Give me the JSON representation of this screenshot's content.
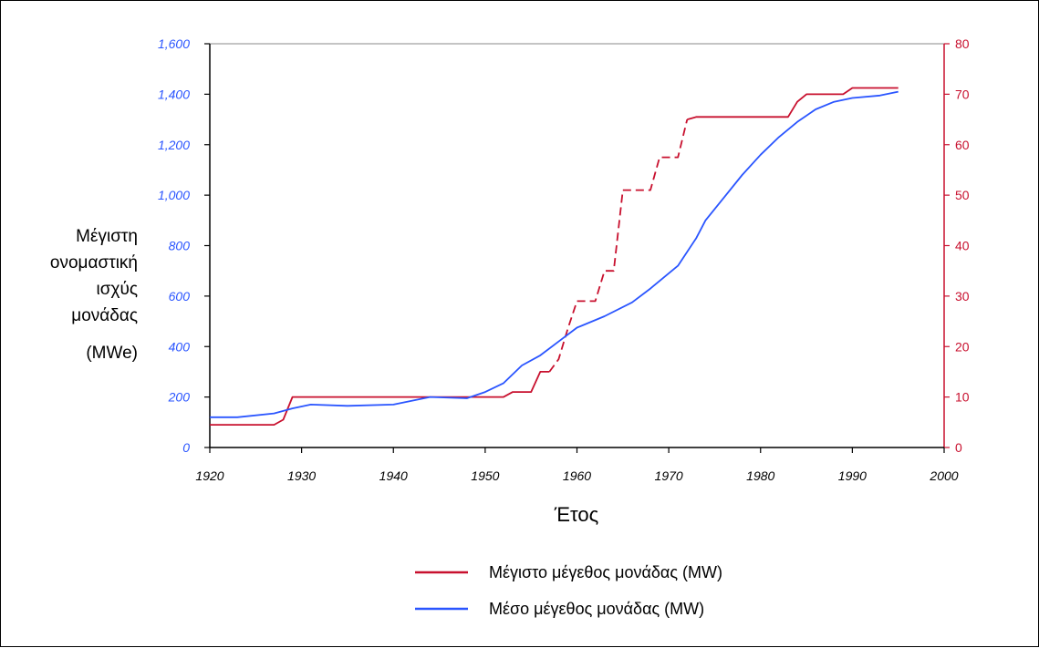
{
  "chart_data": {
    "type": "line",
    "title": "",
    "xlabel": "Έτος",
    "ylabel_lines": [
      "Μέγιστη",
      "ονομαστική",
      "ισχύς",
      "μονάδας",
      "(MWe)"
    ],
    "xlim": [
      1920,
      2000
    ],
    "ylim_left": [
      0,
      1600
    ],
    "ylim_right": [
      0,
      80
    ],
    "x_ticks": [
      "1920",
      "1930",
      "1940",
      "1950",
      "1960",
      "1970",
      "1980",
      "1990",
      "2000"
    ],
    "y_ticks_left": [
      "0",
      "200",
      "400",
      "600",
      "800",
      "1,000",
      "1,200",
      "1,400",
      "1,600"
    ],
    "y_ticks_right": [
      "0",
      "10",
      "20",
      "30",
      "40",
      "50",
      "60",
      "70",
      "80"
    ],
    "grid": false,
    "legend_position": "bottom",
    "colors": {
      "max": "#c8102e",
      "avg": "#2a55ff"
    },
    "series": [
      {
        "name": "Μέγιστο μέγεθος μονάδας (MW)",
        "color": "#c8102e",
        "axis": "left",
        "dash_segment_x": [
          1957,
          1972
        ],
        "points": [
          [
            1920,
            90
          ],
          [
            1927,
            90
          ],
          [
            1928,
            110
          ],
          [
            1929,
            200
          ],
          [
            1952,
            200
          ],
          [
            1953,
            220
          ],
          [
            1955,
            220
          ],
          [
            1956,
            300
          ],
          [
            1957,
            300
          ],
          [
            1958,
            350
          ],
          [
            1959,
            470
          ],
          [
            1960,
            580
          ],
          [
            1962,
            580
          ],
          [
            1963,
            700
          ],
          [
            1964,
            700
          ],
          [
            1965,
            1020
          ],
          [
            1968,
            1020
          ],
          [
            1969,
            1150
          ],
          [
            1971,
            1150
          ],
          [
            1972,
            1300
          ],
          [
            1973,
            1310
          ],
          [
            1983,
            1310
          ],
          [
            1984,
            1370
          ],
          [
            1985,
            1400
          ],
          [
            1989,
            1400
          ],
          [
            1990,
            1425
          ],
          [
            1995,
            1425
          ]
        ]
      },
      {
        "name": "Μέσο μέγεθος μονάδας (MW)",
        "color": "#2a55ff",
        "axis": "left",
        "points": [
          [
            1920,
            120
          ],
          [
            1923,
            120
          ],
          [
            1927,
            135
          ],
          [
            1929,
            155
          ],
          [
            1931,
            170
          ],
          [
            1935,
            165
          ],
          [
            1940,
            170
          ],
          [
            1942,
            185
          ],
          [
            1944,
            200
          ],
          [
            1948,
            195
          ],
          [
            1950,
            220
          ],
          [
            1952,
            255
          ],
          [
            1954,
            325
          ],
          [
            1956,
            365
          ],
          [
            1958,
            420
          ],
          [
            1960,
            475
          ],
          [
            1963,
            520
          ],
          [
            1966,
            575
          ],
          [
            1968,
            630
          ],
          [
            1971,
            720
          ],
          [
            1973,
            830
          ],
          [
            1974,
            900
          ],
          [
            1976,
            990
          ],
          [
            1978,
            1080
          ],
          [
            1980,
            1160
          ],
          [
            1982,
            1230
          ],
          [
            1984,
            1290
          ],
          [
            1986,
            1340
          ],
          [
            1988,
            1370
          ],
          [
            1990,
            1385
          ],
          [
            1993,
            1395
          ],
          [
            1995,
            1410
          ]
        ]
      }
    ]
  }
}
